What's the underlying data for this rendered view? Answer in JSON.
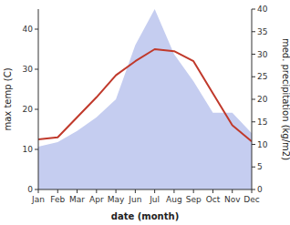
{
  "chart_data": {
    "type": "line",
    "categories": [
      "Jan",
      "Feb",
      "Mar",
      "Apr",
      "May",
      "Jun",
      "Jul",
      "Aug",
      "Sep",
      "Oct",
      "Nov",
      "Dec"
    ],
    "series": [
      {
        "type": "area",
        "axis": "y2",
        "color": "#c5cdf0",
        "values": [
          9.5,
          10.5,
          13.0,
          16.0,
          20.0,
          32.0,
          40.0,
          30.0,
          24.0,
          17.0,
          17.0,
          12.5
        ]
      },
      {
        "type": "line",
        "color": "#c0392b",
        "values": [
          12.5,
          13.0,
          18.0,
          23.0,
          28.5,
          32.0,
          35.0,
          34.5,
          32.0,
          24.0,
          16.0,
          12.0
        ]
      }
    ],
    "xlabel": "date (month)",
    "ylabel": "max temp (C)",
    "y2label": "med. precipitation (kg/m2)",
    "ylim": [
      0,
      45
    ],
    "yticks": [
      0,
      10,
      20,
      30,
      40
    ],
    "y2lim": [
      0,
      40
    ],
    "y2ticks": [
      0,
      5,
      10,
      15,
      20,
      25,
      30,
      35,
      40
    ],
    "grid": false
  }
}
